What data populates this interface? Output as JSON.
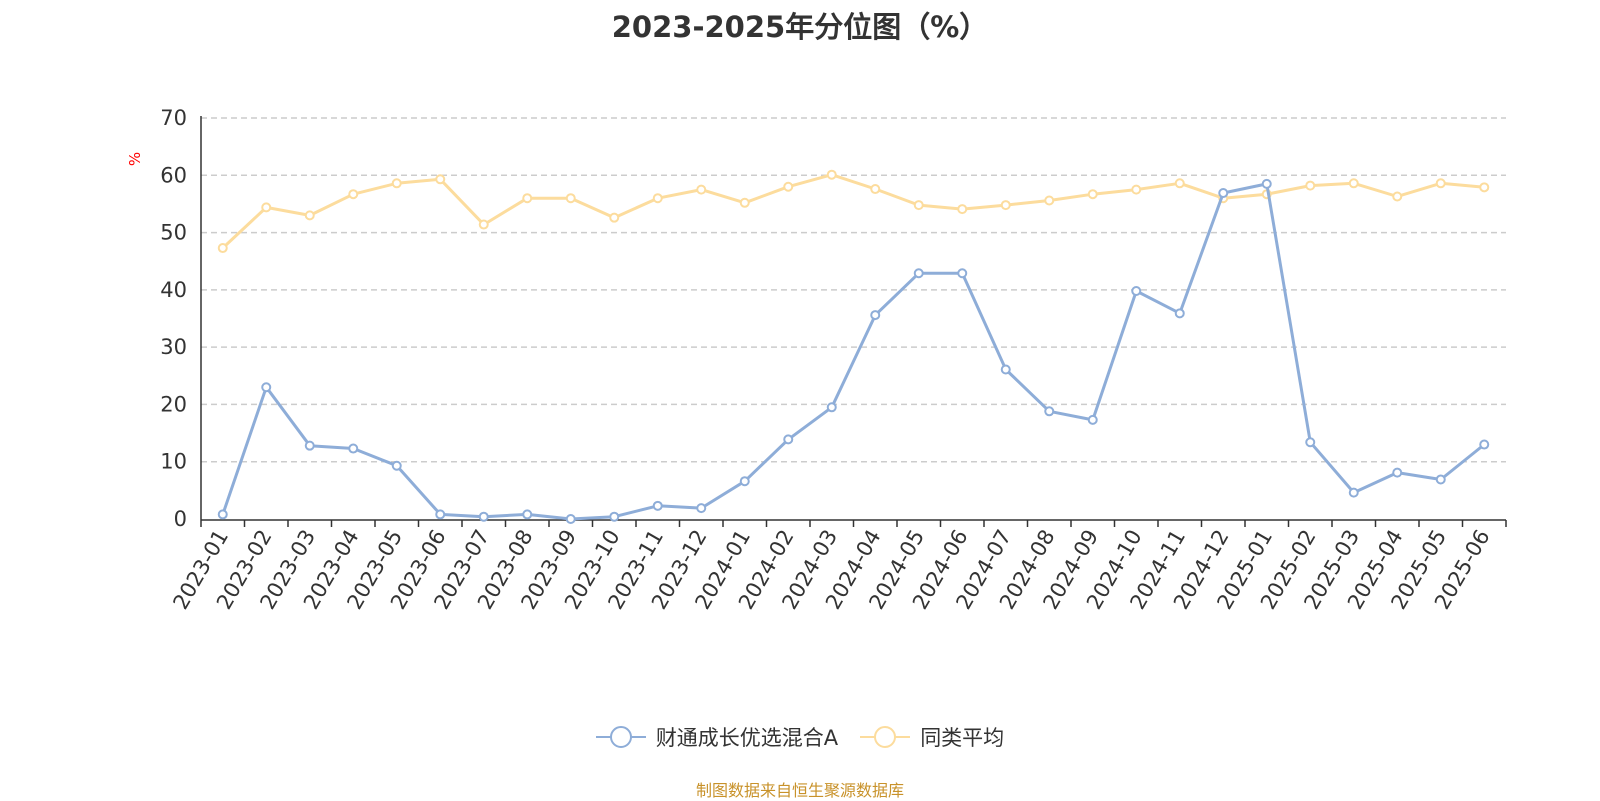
{
  "chart_data": {
    "type": "line",
    "title": "2023-2025年分位图（%）",
    "ylabel": "%",
    "xlabel": "",
    "ylim": [
      0,
      70
    ],
    "yticks": [
      0,
      10,
      20,
      30,
      40,
      50,
      60,
      70
    ],
    "grid": true,
    "legend_position": "bottom",
    "categories": [
      "2023-01",
      "2023-02",
      "2023-03",
      "2023-04",
      "2023-05",
      "2023-06",
      "2023-07",
      "2023-08",
      "2023-09",
      "2023-10",
      "2023-11",
      "2023-12",
      "2024-01",
      "2024-02",
      "2024-03",
      "2024-04",
      "2024-05",
      "2024-06",
      "2024-07",
      "2024-08",
      "2024-09",
      "2024-10",
      "2024-11",
      "2024-12",
      "2025-01",
      "2025-02",
      "2025-03",
      "2025-04",
      "2025-05",
      "2025-06"
    ],
    "series": [
      {
        "name": "财通成长优选混合A",
        "color": "#8eadd8",
        "values": [
          0.8,
          23.0,
          12.8,
          12.3,
          9.3,
          0.8,
          0.4,
          0.8,
          0.0,
          0.4,
          2.3,
          1.9,
          6.6,
          13.9,
          19.5,
          35.6,
          42.9,
          42.9,
          26.1,
          18.8,
          17.3,
          39.8,
          35.9,
          56.9,
          58.5,
          13.4,
          4.6,
          8.1,
          6.9,
          13.0
        ]
      },
      {
        "name": "同类平均",
        "color": "#fcdc9d",
        "values": [
          47.3,
          54.4,
          53.0,
          56.7,
          58.6,
          59.3,
          51.4,
          56.0,
          56.0,
          52.6,
          56.0,
          57.5,
          55.2,
          58.0,
          60.1,
          57.6,
          54.8,
          54.1,
          54.8,
          55.6,
          56.7,
          57.5,
          58.6,
          56.0,
          56.7,
          58.2,
          58.6,
          56.3,
          58.6,
          57.9
        ]
      }
    ]
  },
  "colors": {
    "axis": "#333333",
    "grid": "#cccccc",
    "unit": "#ff0000",
    "source": "#c8922a"
  },
  "source_text": "制图数据来自恒生聚源数据库"
}
